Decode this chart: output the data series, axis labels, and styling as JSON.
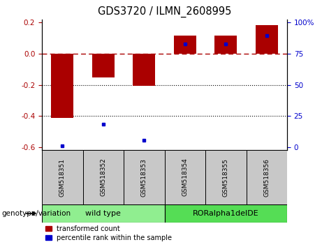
{
  "title": "GDS3720 / ILMN_2608995",
  "samples": [
    "GSM518351",
    "GSM518352",
    "GSM518353",
    "GSM518354",
    "GSM518355",
    "GSM518356"
  ],
  "red_bars": [
    -0.415,
    -0.155,
    -0.205,
    0.115,
    0.115,
    0.185
  ],
  "blue_dots_y": [
    -0.595,
    -0.455,
    -0.555,
    0.065,
    0.065,
    0.115
  ],
  "blue_dots_x": [
    0,
    1,
    2,
    3,
    4,
    5
  ],
  "ylim": [
    -0.62,
    0.22
  ],
  "y_left_ticks": [
    0.2,
    0.0,
    -0.2,
    -0.4,
    -0.6
  ],
  "y_right_ticks": [
    100,
    75,
    50,
    25,
    0
  ],
  "y_right_tick_positions": [
    0.2,
    0.0,
    -0.2,
    -0.4,
    -0.6
  ],
  "hline_y": 0.0,
  "dotted_lines": [
    -0.2,
    -0.4
  ],
  "group1_label": "wild type",
  "group2_label": "RORalpha1delDE",
  "group1_indices": [
    0,
    1,
    2
  ],
  "group2_indices": [
    3,
    4,
    5
  ],
  "group1_color": "#90EE90",
  "group2_color": "#55DD55",
  "sample_bg_color": "#C8C8C8",
  "red_color": "#AA0000",
  "blue_color": "#0000CC",
  "legend_red": "transformed count",
  "legend_blue": "percentile rank within the sample",
  "genotype_label": "genotype/variation",
  "bar_width": 0.55
}
